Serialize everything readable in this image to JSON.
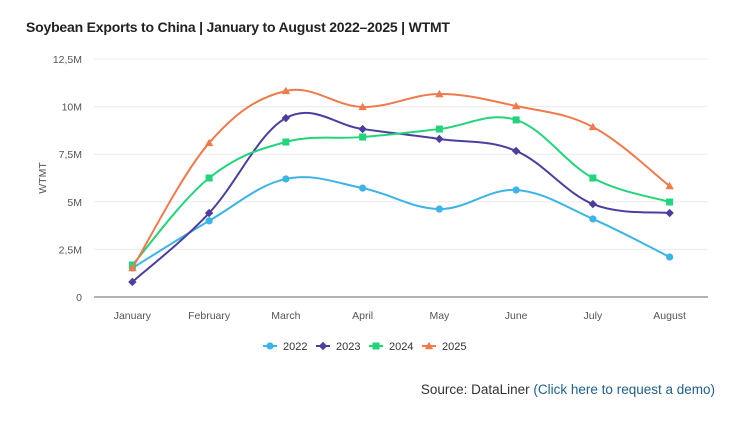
{
  "chart_data": {
    "type": "line",
    "title": "Soybean Exports to China | January to August 2022–2025 | WTMT",
    "xlabel": "",
    "ylabel": "WTMT",
    "ylim": [
      0,
      12500000
    ],
    "yticks": [
      0,
      2500000,
      5000000,
      7500000,
      10000000,
      12500000
    ],
    "ytick_labels": [
      "0",
      "2,5M",
      "5M",
      "7,5M",
      "10M",
      "12,5M"
    ],
    "grid": true,
    "legend_position": "bottom-center",
    "categories": [
      "January",
      "February",
      "March",
      "April",
      "May",
      "June",
      "July",
      "August"
    ],
    "series": [
      {
        "name": "2022",
        "color": "#3cb4e5",
        "marker": "circle",
        "values": [
          1.52,
          4.0,
          6.2,
          5.72,
          4.62,
          5.62,
          4.1,
          2.1
        ]
      },
      {
        "name": "2023",
        "color": "#4a3f9f",
        "marker": "diamond",
        "values": [
          0.79,
          4.41,
          9.4,
          8.82,
          8.3,
          7.67,
          4.88,
          4.41
        ]
      },
      {
        "name": "2024",
        "color": "#22d47b",
        "marker": "square",
        "values": [
          1.68,
          6.25,
          8.14,
          8.4,
          8.82,
          9.3,
          6.25,
          4.99
        ]
      },
      {
        "name": "2025",
        "color": "#ef7a4c",
        "marker": "triangle",
        "values": [
          1.52,
          8.09,
          10.82,
          9.98,
          10.66,
          10.03,
          8.93,
          5.83
        ]
      }
    ],
    "value_unit": "millions"
  },
  "source": {
    "label": "Source: DataLiner",
    "link": "(Click here to request a demo)"
  }
}
